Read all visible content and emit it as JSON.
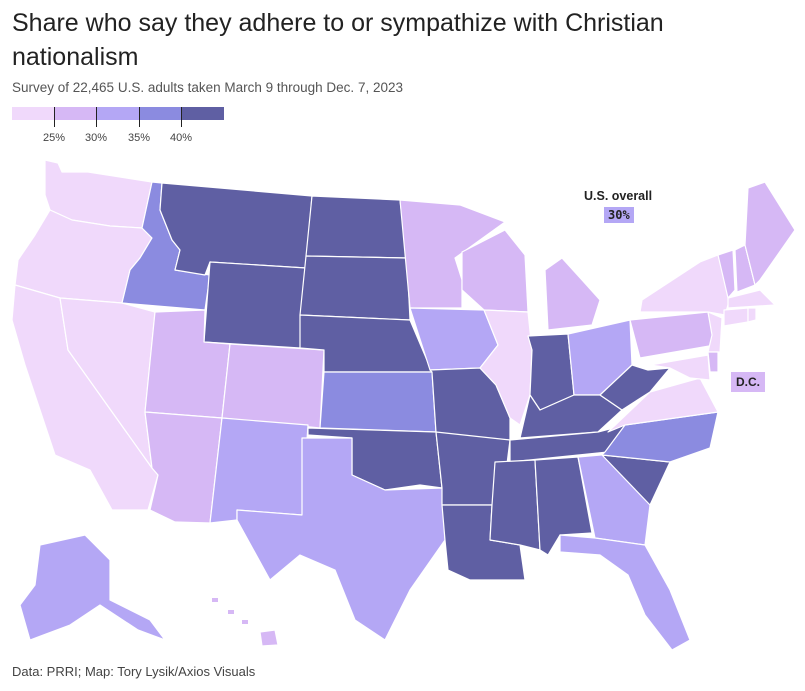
{
  "title": "Share who say they adhere to or sympathize with Christian nationalism",
  "subtitle": "Survey of 22,465 U.S. adults taken March 9 through Dec. 7, 2023",
  "source": "Data: PRRI; Map: Tory Lysik/Axios Visuals",
  "legend": {
    "colors": [
      "#f0d9fb",
      "#d6b8f5",
      "#b4a7f5",
      "#8b8be0",
      "#5f5fa3"
    ],
    "labels": [
      "25%",
      "30%",
      "35%",
      "40%"
    ]
  },
  "overall": {
    "label": "U.S. overall",
    "value": "30%",
    "color": "#b4a7f5"
  },
  "dc": {
    "label": "D.C.",
    "color": "#d6b8f5"
  },
  "stroke_color": "#ffffff",
  "state_shading": [
    {
      "state": "Washington",
      "bin": 0
    },
    {
      "state": "Oregon",
      "bin": 0
    },
    {
      "state": "California",
      "bin": 0
    },
    {
      "state": "Nevada",
      "bin": 0
    },
    {
      "state": "Idaho",
      "bin": 3
    },
    {
      "state": "Montana",
      "bin": 4
    },
    {
      "state": "Wyoming",
      "bin": 4
    },
    {
      "state": "Utah",
      "bin": 1
    },
    {
      "state": "Colorado",
      "bin": 1
    },
    {
      "state": "Arizona",
      "bin": 1
    },
    {
      "state": "New Mexico",
      "bin": 2
    },
    {
      "state": "North Dakota",
      "bin": 4
    },
    {
      "state": "South Dakota",
      "bin": 4
    },
    {
      "state": "Nebraska",
      "bin": 4
    },
    {
      "state": "Kansas",
      "bin": 3
    },
    {
      "state": "Oklahoma",
      "bin": 4
    },
    {
      "state": "Texas",
      "bin": 2
    },
    {
      "state": "Minnesota",
      "bin": 1
    },
    {
      "state": "Iowa",
      "bin": 2
    },
    {
      "state": "Missouri",
      "bin": 4
    },
    {
      "state": "Arkansas",
      "bin": 4
    },
    {
      "state": "Louisiana",
      "bin": 4
    },
    {
      "state": "Wisconsin",
      "bin": 1
    },
    {
      "state": "Illinois",
      "bin": 0
    },
    {
      "state": "Michigan",
      "bin": 1
    },
    {
      "state": "Indiana",
      "bin": 4
    },
    {
      "state": "Ohio",
      "bin": 2
    },
    {
      "state": "Kentucky",
      "bin": 4
    },
    {
      "state": "Tennessee",
      "bin": 4
    },
    {
      "state": "Mississippi",
      "bin": 4
    },
    {
      "state": "Alabama",
      "bin": 4
    },
    {
      "state": "Georgia",
      "bin": 2
    },
    {
      "state": "Florida",
      "bin": 2
    },
    {
      "state": "South Carolina",
      "bin": 4
    },
    {
      "state": "North Carolina",
      "bin": 3
    },
    {
      "state": "Virginia",
      "bin": 0
    },
    {
      "state": "West Virginia",
      "bin": 4
    },
    {
      "state": "Pennsylvania",
      "bin": 1
    },
    {
      "state": "New York",
      "bin": 0
    },
    {
      "state": "Vermont",
      "bin": 1
    },
    {
      "state": "New Hampshire",
      "bin": 1
    },
    {
      "state": "Maine",
      "bin": 1
    },
    {
      "state": "Massachusetts",
      "bin": 0
    },
    {
      "state": "Connecticut",
      "bin": 0
    },
    {
      "state": "Rhode Island",
      "bin": 0
    },
    {
      "state": "New Jersey",
      "bin": 0
    },
    {
      "state": "Delaware",
      "bin": 1
    },
    {
      "state": "Maryland",
      "bin": 0
    },
    {
      "state": "Alaska",
      "bin": 2
    },
    {
      "state": "Hawaii",
      "bin": 1
    }
  ]
}
